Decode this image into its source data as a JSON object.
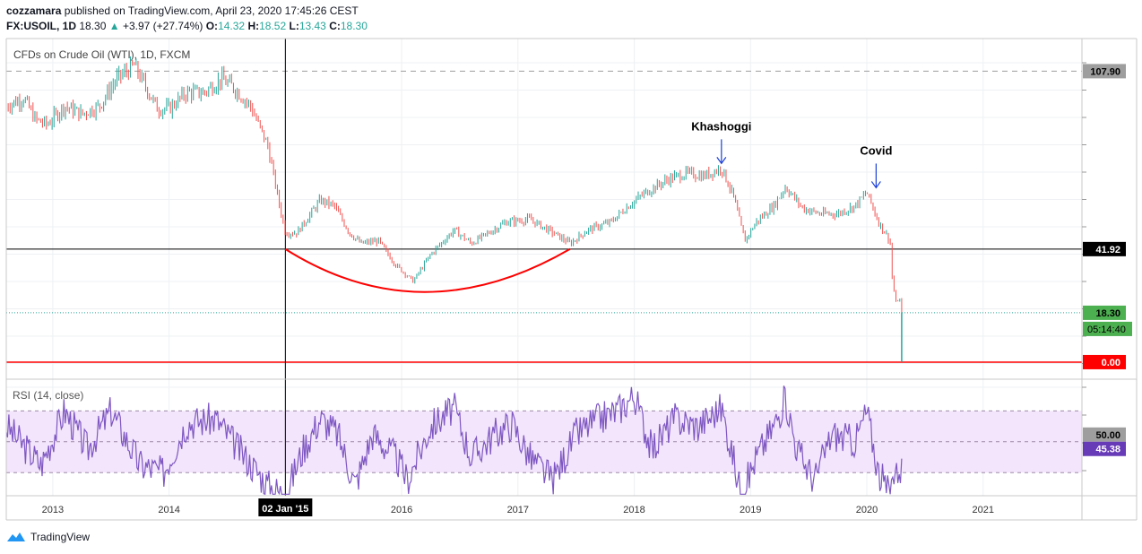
{
  "header": {
    "author": "cozzamara",
    "published_text": "published on TradingView.com, April 23, 2020 17:45:26 CEST",
    "symbol_interval": "FX:USOIL, 1D",
    "last_price": "18.30",
    "change": "+3.97 (+27.74%)",
    "o_label": "O:",
    "o_value": "14.32",
    "h_label": "H:",
    "h_value": "18.52",
    "l_label": "L:",
    "l_value": "13.43",
    "c_label": "C:",
    "c_value": "18.30"
  },
  "footer": {
    "brand": "TradingView"
  },
  "colors": {
    "candle_up": "#26a69a",
    "candle_down": "#ef5350",
    "rsi": "#7e57c2",
    "rsi_band": "#f3e5fb",
    "red_line": "#ff0000",
    "arc": "#ff0000",
    "label_grey": "#9e9e9e",
    "label_green": "#4caf50",
    "label_purple": "#673ab7"
  },
  "chart_data": {
    "type": "candlestick",
    "title": "CFDs on Crude Oil (WTI), 1D, FXCM",
    "x_ticks": [
      "2013",
      "2014",
      "02 Jan '15",
      "2016",
      "2017",
      "2018",
      "2019",
      "2020",
      "2021"
    ],
    "x_range": [
      2012.6,
      2021.85
    ],
    "price_range": [
      -6,
      120
    ],
    "price_series": [
      {
        "x": 2012.6,
        "y": 95
      },
      {
        "x": 2012.75,
        "y": 98
      },
      {
        "x": 2012.85,
        "y": 90
      },
      {
        "x": 2012.95,
        "y": 88
      },
      {
        "x": 2013.1,
        "y": 95
      },
      {
        "x": 2013.25,
        "y": 92
      },
      {
        "x": 2013.4,
        "y": 95
      },
      {
        "x": 2013.55,
        "y": 105
      },
      {
        "x": 2013.7,
        "y": 110
      },
      {
        "x": 2013.9,
        "y": 94
      },
      {
        "x": 2014.0,
        "y": 94
      },
      {
        "x": 2014.15,
        "y": 100
      },
      {
        "x": 2014.3,
        "y": 100
      },
      {
        "x": 2014.45,
        "y": 105
      },
      {
        "x": 2014.55,
        "y": 102
      },
      {
        "x": 2014.7,
        "y": 95
      },
      {
        "x": 2014.85,
        "y": 80
      },
      {
        "x": 2014.95,
        "y": 58
      },
      {
        "x": 2015.0,
        "y": 48
      },
      {
        "x": 2015.1,
        "y": 48
      },
      {
        "x": 2015.3,
        "y": 60
      },
      {
        "x": 2015.42,
        "y": 58
      },
      {
        "x": 2015.55,
        "y": 48
      },
      {
        "x": 2015.65,
        "y": 44
      },
      {
        "x": 2015.8,
        "y": 45
      },
      {
        "x": 2015.95,
        "y": 36
      },
      {
        "x": 2016.1,
        "y": 30
      },
      {
        "x": 2016.25,
        "y": 40
      },
      {
        "x": 2016.45,
        "y": 49
      },
      {
        "x": 2016.6,
        "y": 44
      },
      {
        "x": 2016.75,
        "y": 48
      },
      {
        "x": 2016.9,
        "y": 52
      },
      {
        "x": 2017.1,
        "y": 53
      },
      {
        "x": 2017.3,
        "y": 48
      },
      {
        "x": 2017.45,
        "y": 44
      },
      {
        "x": 2017.6,
        "y": 49
      },
      {
        "x": 2017.8,
        "y": 52
      },
      {
        "x": 2017.95,
        "y": 58
      },
      {
        "x": 2018.1,
        "y": 63
      },
      {
        "x": 2018.3,
        "y": 68
      },
      {
        "x": 2018.45,
        "y": 70
      },
      {
        "x": 2018.6,
        "y": 69
      },
      {
        "x": 2018.75,
        "y": 72
      },
      {
        "x": 2018.85,
        "y": 62
      },
      {
        "x": 2018.95,
        "y": 45
      },
      {
        "x": 2019.05,
        "y": 52
      },
      {
        "x": 2019.2,
        "y": 58
      },
      {
        "x": 2019.3,
        "y": 65
      },
      {
        "x": 2019.45,
        "y": 57
      },
      {
        "x": 2019.6,
        "y": 55
      },
      {
        "x": 2019.75,
        "y": 55
      },
      {
        "x": 2019.9,
        "y": 58
      },
      {
        "x": 2020.0,
        "y": 63
      },
      {
        "x": 2020.1,
        "y": 52
      },
      {
        "x": 2020.2,
        "y": 45
      },
      {
        "x": 2020.22,
        "y": 30
      },
      {
        "x": 2020.25,
        "y": 22
      },
      {
        "x": 2020.28,
        "y": 24
      },
      {
        "x": 2020.3,
        "y": 18.3
      }
    ],
    "horizontal_lines": [
      {
        "value": 107.9,
        "label": "107.90",
        "style": "dashed"
      },
      {
        "value": 41.92,
        "label": "41.92",
        "style": "crosshair"
      },
      {
        "value": 18.3,
        "label": "18.30",
        "style": "dotted"
      },
      {
        "value": 0.0,
        "label": "0.00",
        "style": "solid-red"
      }
    ],
    "countdown_label": "05:14:40",
    "crosshair_x": 2015.0,
    "annotations": [
      {
        "text": "Khashoggi",
        "x": 2018.75,
        "y": 72
      },
      {
        "text": "Covid",
        "x": 2020.08,
        "y": 63
      }
    ],
    "arc": {
      "start": {
        "x": 2015.0,
        "y": 41.92
      },
      "bottom": {
        "x": 2016.2,
        "y": 26
      },
      "end": {
        "x": 2017.45,
        "y": 42
      }
    },
    "rsi": {
      "title": "RSI (14, close)",
      "range": [
        15,
        90
      ],
      "upper_band": 70,
      "lower_band": 30,
      "mid_label": "50.00",
      "last_label": "45.38",
      "series": [
        {
          "x": 2012.6,
          "y": 60
        },
        {
          "x": 2012.9,
          "y": 35
        },
        {
          "x": 2013.1,
          "y": 70
        },
        {
          "x": 2013.3,
          "y": 45
        },
        {
          "x": 2013.5,
          "y": 70
        },
        {
          "x": 2013.75,
          "y": 35
        },
        {
          "x": 2013.95,
          "y": 30
        },
        {
          "x": 2014.15,
          "y": 62
        },
        {
          "x": 2014.4,
          "y": 65
        },
        {
          "x": 2014.6,
          "y": 45
        },
        {
          "x": 2014.85,
          "y": 22
        },
        {
          "x": 2015.0,
          "y": 15
        },
        {
          "x": 2015.15,
          "y": 45
        },
        {
          "x": 2015.3,
          "y": 65
        },
        {
          "x": 2015.45,
          "y": 55
        },
        {
          "x": 2015.6,
          "y": 22
        },
        {
          "x": 2015.75,
          "y": 55
        },
        {
          "x": 2015.95,
          "y": 40
        },
        {
          "x": 2016.05,
          "y": 25
        },
        {
          "x": 2016.25,
          "y": 60
        },
        {
          "x": 2016.45,
          "y": 72
        },
        {
          "x": 2016.6,
          "y": 40
        },
        {
          "x": 2016.8,
          "y": 55
        },
        {
          "x": 2016.95,
          "y": 62
        },
        {
          "x": 2017.1,
          "y": 40
        },
        {
          "x": 2017.3,
          "y": 25
        },
        {
          "x": 2017.5,
          "y": 55
        },
        {
          "x": 2017.7,
          "y": 65
        },
        {
          "x": 2017.85,
          "y": 70
        },
        {
          "x": 2018.0,
          "y": 80
        },
        {
          "x": 2018.15,
          "y": 45
        },
        {
          "x": 2018.35,
          "y": 65
        },
        {
          "x": 2018.55,
          "y": 60
        },
        {
          "x": 2018.75,
          "y": 72
        },
        {
          "x": 2018.85,
          "y": 40
        },
        {
          "x": 2018.92,
          "y": 15
        },
        {
          "x": 2019.05,
          "y": 40
        },
        {
          "x": 2019.2,
          "y": 60
        },
        {
          "x": 2019.3,
          "y": 78
        },
        {
          "x": 2019.4,
          "y": 45
        },
        {
          "x": 2019.55,
          "y": 25
        },
        {
          "x": 2019.7,
          "y": 55
        },
        {
          "x": 2019.9,
          "y": 50
        },
        {
          "x": 2020.0,
          "y": 70
        },
        {
          "x": 2020.1,
          "y": 30
        },
        {
          "x": 2020.2,
          "y": 15
        },
        {
          "x": 2020.25,
          "y": 40
        },
        {
          "x": 2020.28,
          "y": 20
        },
        {
          "x": 2020.3,
          "y": 45.38
        }
      ]
    }
  }
}
